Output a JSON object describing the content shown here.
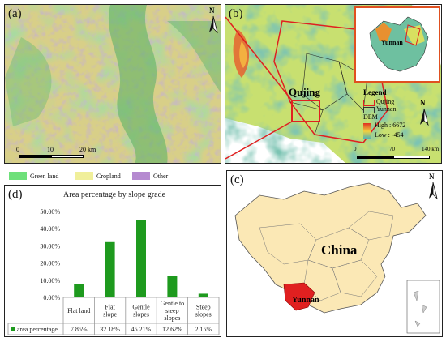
{
  "panels": {
    "a": {
      "label": "(a)",
      "scale": {
        "ticks": [
          "0",
          "10",
          "20 km"
        ]
      }
    },
    "b": {
      "label": "(b)",
      "place": "Qujing",
      "inset_place": "Yunnan",
      "legend": {
        "title": "Legend",
        "items": [
          "Qujing",
          "Yunnan"
        ],
        "dem_title": "DEM",
        "high": "High : 6672",
        "low": "Low : -454"
      },
      "scale": {
        "ticks": [
          "0",
          "70",
          "140 km"
        ]
      }
    },
    "c": {
      "label": "(c)",
      "country": "China",
      "province": "Yunnan"
    },
    "d": {
      "label": "(d)"
    }
  },
  "landcover_legend": [
    {
      "label": "Green land",
      "color": "#6ee07a"
    },
    {
      "label": "Cropland",
      "color": "#f0ef9a"
    },
    {
      "label": "Other",
      "color": "#b58ad0"
    }
  ],
  "north_letter": "N",
  "chart_data": {
    "type": "bar",
    "title": "Area percentage by slope grade",
    "categories": [
      "Flat land",
      "Flat slope",
      "Gentle slopes",
      "Gentle to steep slopes",
      "Steep slopes"
    ],
    "category_lines": [
      [
        "Flat land"
      ],
      [
        "Flat",
        "slope"
      ],
      [
        "Gentle",
        "slopes"
      ],
      [
        "Gentle to",
        "steep",
        "slopes"
      ],
      [
        "Steep",
        "slopes"
      ]
    ],
    "series": [
      {
        "name": "area percentage",
        "values": [
          7.85,
          32.18,
          45.21,
          12.62,
          2.15
        ],
        "color": "#1e9a1e"
      }
    ],
    "value_labels": [
      "7.85%",
      "32.18%",
      "45.21%",
      "12.62%",
      "2.15%"
    ],
    "yticks": [
      "0.00%",
      "10.00%",
      "20.00%",
      "30.00%",
      "40.00%",
      "50.00%"
    ],
    "ylim": [
      0,
      50
    ],
    "grid": false,
    "legend": "bottom-left table"
  }
}
